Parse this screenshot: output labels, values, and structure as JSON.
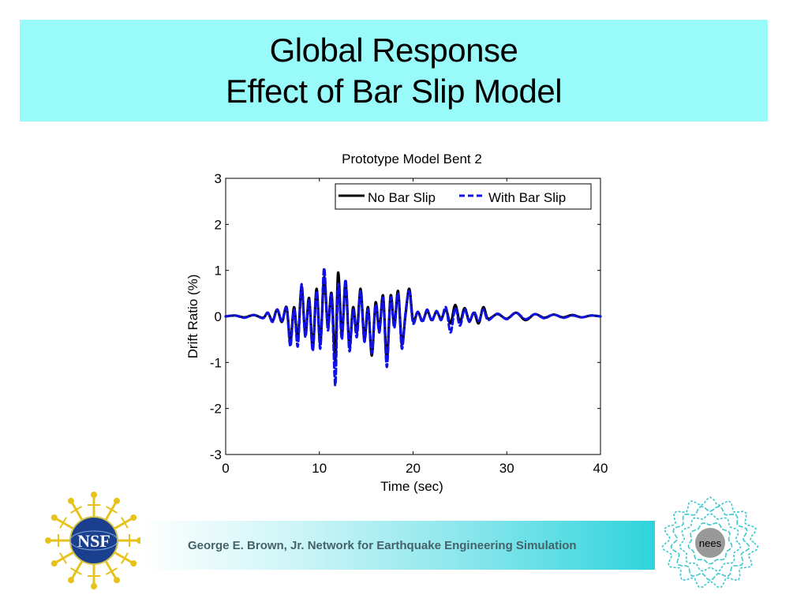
{
  "slide": {
    "title_line1": "Global Response",
    "title_line2": "Effect of Bar Slip Model",
    "footer": "George E. Brown, Jr. Network for Earthquake Engineering Simulation",
    "left_logo": {
      "icon": "nsf-logo",
      "text": "NSF"
    },
    "right_logo": {
      "icon": "nees-logo",
      "text": "nees"
    },
    "colors": {
      "title_bg": "#99fafa",
      "footer_accent": "#2fd3dc",
      "series_no_slip": "#000000",
      "series_with_slip": "#1010e8"
    }
  },
  "chart_data": {
    "type": "line",
    "title": "Prototype Model Bent 2",
    "xlabel": "Time (sec)",
    "ylabel": "Drift Ratio (%)",
    "xlim": [
      0,
      40
    ],
    "ylim": [
      -3,
      3
    ],
    "xticks": [
      "0",
      "10",
      "20",
      "30",
      "40"
    ],
    "yticks": [
      "-3",
      "-2",
      "-1",
      "0",
      "1",
      "2",
      "3"
    ],
    "grid": false,
    "legend_position": "top-right",
    "series": [
      {
        "name": "No Bar Slip",
        "style": "solid",
        "color": "#000000",
        "x": [
          0,
          1,
          2,
          3,
          4,
          4.5,
          5,
          5.5,
          6,
          6.5,
          6.9,
          7.3,
          7.7,
          8.1,
          8.5,
          8.9,
          9.3,
          9.7,
          10.1,
          10.5,
          10.9,
          11.3,
          11.7,
          12.0,
          12.4,
          12.8,
          13.2,
          13.6,
          14.0,
          14.4,
          14.8,
          15.2,
          15.6,
          16.0,
          16.4,
          16.8,
          17.2,
          17.6,
          18.0,
          18.4,
          18.8,
          19.2,
          19.6,
          20.0,
          20.5,
          21.0,
          21.5,
          22.0,
          22.5,
          23.0,
          23.5,
          24.0,
          24.5,
          25.0,
          25.5,
          26.0,
          26.5,
          27.0,
          27.5,
          28.0,
          29.0,
          30.0,
          31.0,
          32.0,
          33.0,
          34.0,
          35.0,
          36.0,
          37.0,
          38.0,
          39.0,
          40.0
        ],
        "y": [
          0.0,
          0.02,
          -0.02,
          0.03,
          -0.03,
          0.08,
          -0.1,
          0.15,
          -0.12,
          0.2,
          -0.55,
          0.2,
          -0.5,
          0.65,
          -0.4,
          0.4,
          -0.7,
          0.6,
          -0.6,
          0.85,
          -0.2,
          0.5,
          -0.95,
          0.95,
          -0.4,
          0.75,
          -0.65,
          0.2,
          -0.35,
          0.6,
          -0.5,
          0.2,
          -0.85,
          0.3,
          -0.3,
          0.45,
          -0.95,
          0.45,
          -0.2,
          0.55,
          -0.6,
          0.05,
          0.6,
          -0.1,
          0.1,
          -0.1,
          0.12,
          -0.08,
          0.1,
          -0.05,
          0.15,
          -0.15,
          0.25,
          -0.12,
          0.18,
          -0.1,
          0.08,
          -0.15,
          0.2,
          -0.05,
          0.05,
          -0.05,
          0.08,
          -0.08,
          0.05,
          -0.03,
          0.04,
          -0.02,
          0.03,
          -0.02,
          0.02,
          0.0
        ]
      },
      {
        "name": "With Bar Slip",
        "style": "dashed",
        "color": "#1010e8",
        "x": [
          0,
          1,
          2,
          3,
          4,
          4.5,
          5,
          5.5,
          6,
          6.5,
          6.9,
          7.3,
          7.7,
          8.1,
          8.5,
          8.9,
          9.3,
          9.7,
          10.1,
          10.5,
          10.9,
          11.3,
          11.7,
          12.0,
          12.4,
          12.8,
          13.2,
          13.6,
          14.0,
          14.4,
          14.8,
          15.2,
          15.6,
          16.0,
          16.4,
          16.8,
          17.2,
          17.6,
          18.0,
          18.4,
          18.8,
          19.2,
          19.6,
          20.0,
          20.5,
          21.0,
          21.5,
          22.0,
          22.5,
          23.0,
          23.5,
          24.0,
          24.5,
          25.0,
          25.5,
          26.0,
          26.5,
          27.0,
          27.5,
          28.0,
          29.0,
          30.0,
          31.0,
          32.0,
          33.0,
          34.0,
          35.0,
          36.0,
          37.0,
          38.0,
          39.0,
          40.0
        ],
        "y": [
          0.0,
          0.02,
          -0.03,
          0.03,
          -0.04,
          0.08,
          -0.12,
          0.15,
          -0.1,
          0.18,
          -0.65,
          0.15,
          -0.65,
          0.7,
          -0.45,
          0.35,
          -0.75,
          0.55,
          -0.7,
          1.05,
          -0.3,
          0.45,
          -1.5,
          0.7,
          -0.5,
          0.8,
          -0.75,
          0.15,
          -0.45,
          0.55,
          -0.55,
          0.15,
          -0.8,
          0.25,
          -0.35,
          0.4,
          -1.1,
          0.4,
          -0.25,
          0.5,
          -0.7,
          0.1,
          0.55,
          -0.15,
          0.1,
          -0.12,
          0.15,
          -0.1,
          0.12,
          -0.08,
          0.2,
          -0.35,
          0.18,
          -0.2,
          0.15,
          -0.12,
          0.1,
          -0.1,
          0.15,
          -0.08,
          0.06,
          -0.06,
          0.08,
          -0.06,
          0.05,
          -0.04,
          0.04,
          -0.03,
          0.02,
          -0.02,
          0.02,
          0.0
        ]
      }
    ]
  }
}
